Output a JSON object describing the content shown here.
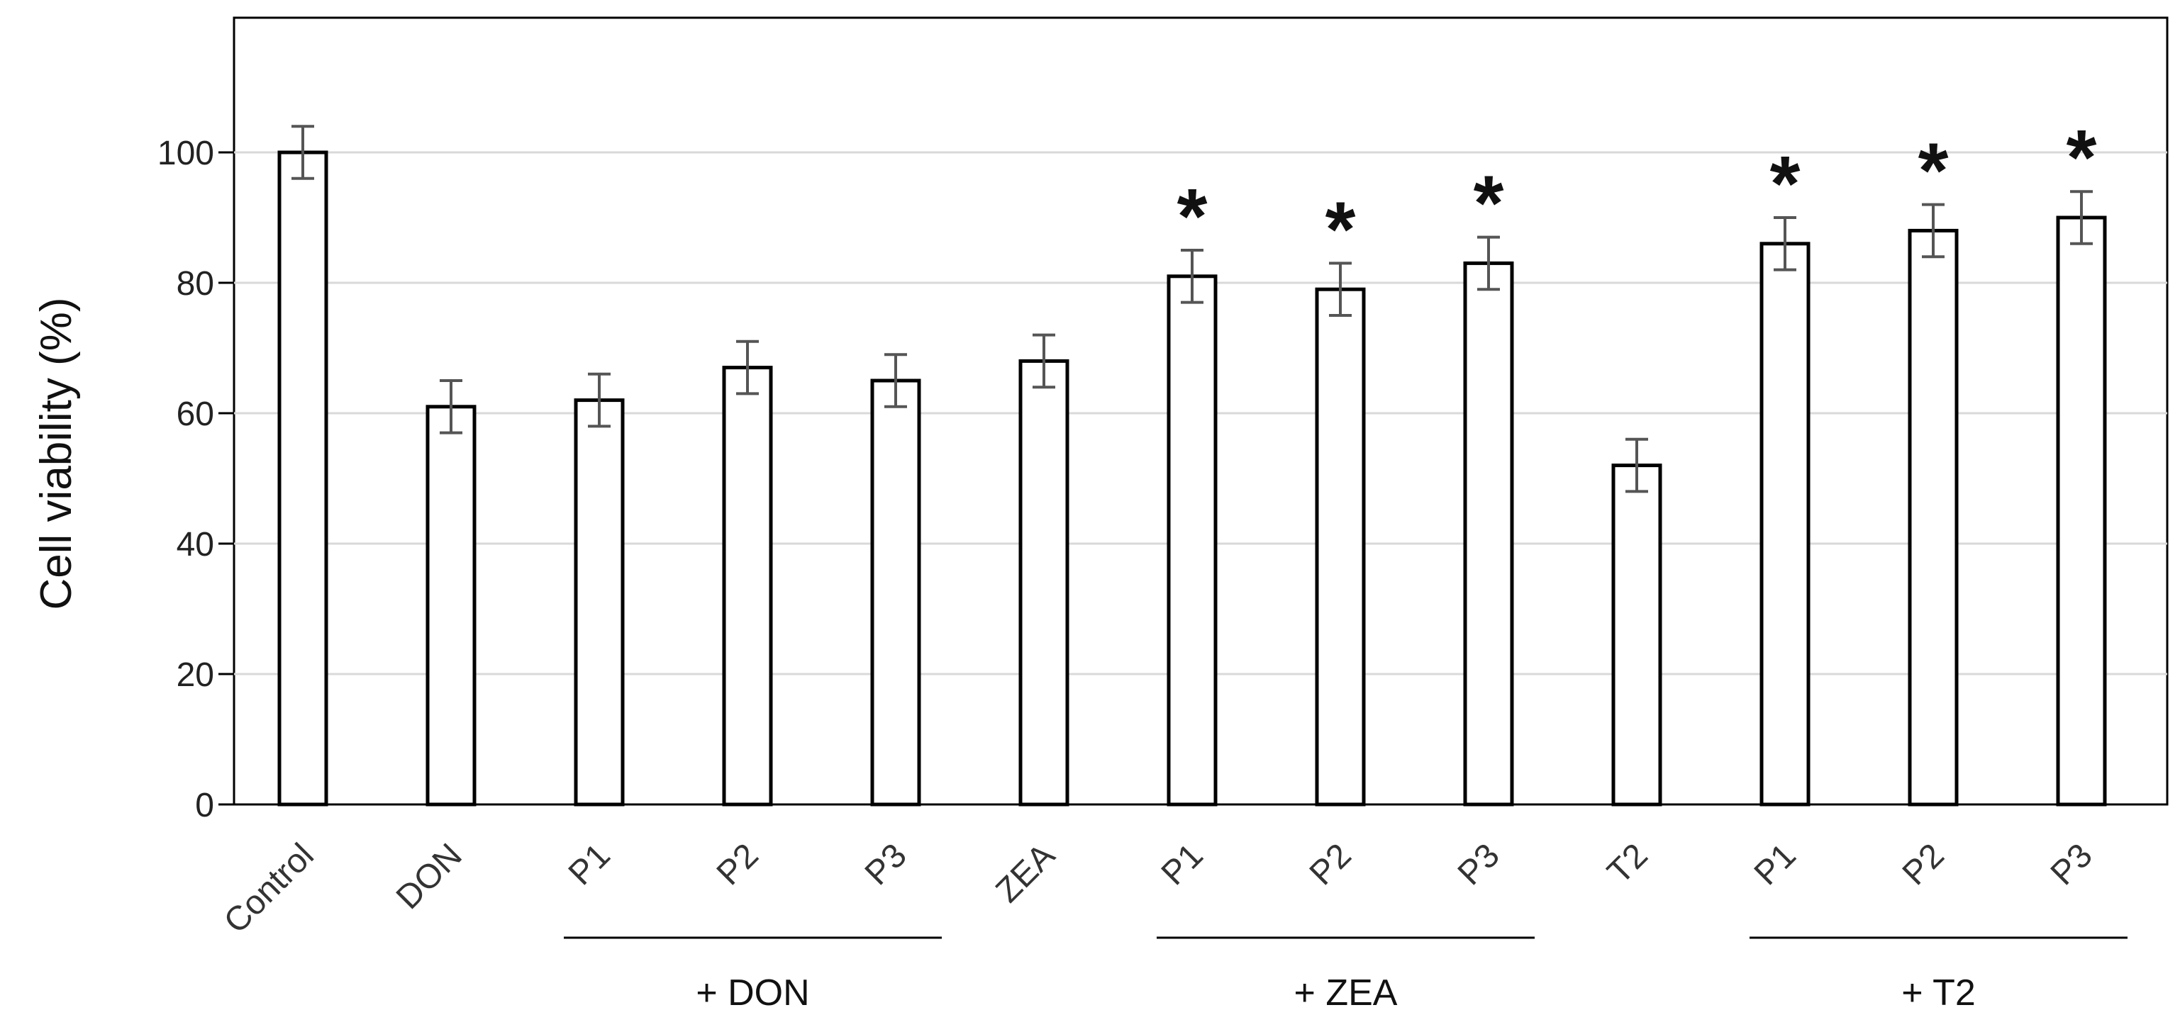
{
  "chart_data": {
    "type": "bar",
    "categories": [
      "Control",
      "DON",
      "P1",
      "P2",
      "P3",
      "ZEA",
      "P1",
      "P2",
      "P3",
      "T2",
      "P1",
      "P2",
      "P3"
    ],
    "values": [
      100,
      61,
      62,
      67,
      65,
      68,
      81,
      79,
      83,
      52,
      86,
      88,
      90
    ],
    "errors": [
      4,
      4,
      4,
      4,
      4,
      4,
      4,
      4,
      4,
      4,
      4,
      4,
      4
    ],
    "significant": [
      false,
      false,
      false,
      false,
      false,
      false,
      true,
      true,
      true,
      false,
      true,
      true,
      true
    ],
    "significance_marker": "*",
    "title": "",
    "xlabel": "",
    "ylabel": "Cell viability (%)",
    "ylim": [
      0,
      120
    ],
    "yticks": [
      0,
      20,
      40,
      60,
      80,
      100
    ],
    "grid": true,
    "groups": [
      {
        "label": "+ DON",
        "start": 2,
        "end": 4
      },
      {
        "label": "+ ZEA",
        "start": 6,
        "end": 8
      },
      {
        "label": "+ T2",
        "start": 10,
        "end": 12
      }
    ],
    "colors": {
      "bar_fill": "#ffffff",
      "bar_stroke": "#000000",
      "error_bar": "#555555",
      "grid": "#d9d9d9"
    }
  }
}
